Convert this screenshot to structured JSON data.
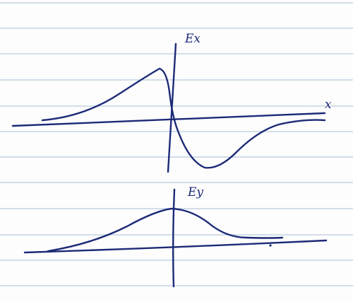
{
  "plots": [
    {
      "axis_label": "Ex",
      "x_label": "x"
    },
    {
      "axis_label": "Ey"
    }
  ]
}
